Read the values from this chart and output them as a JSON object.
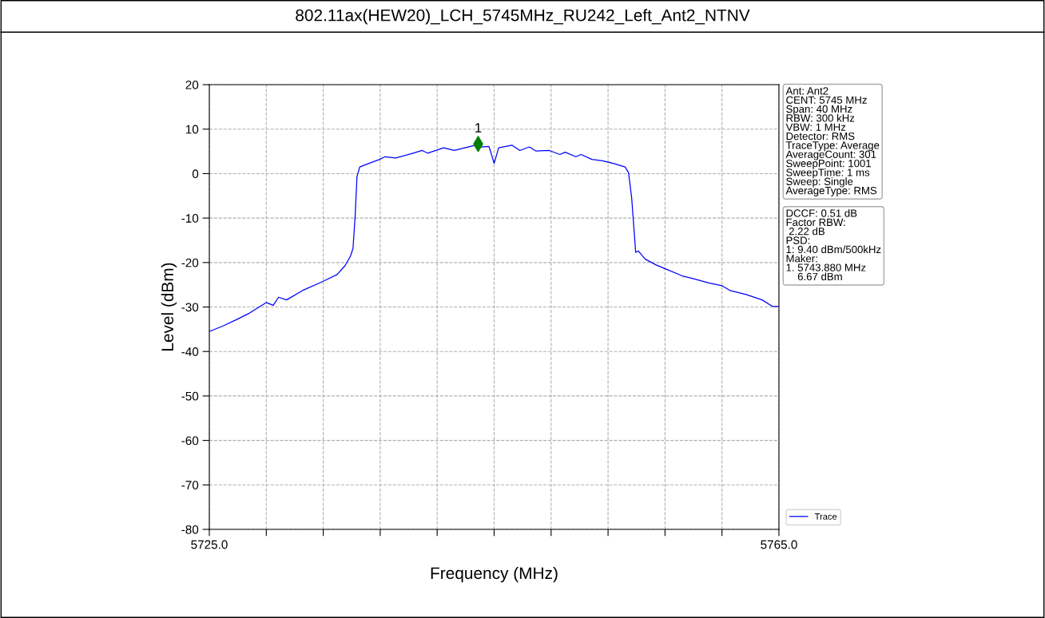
{
  "chart_data": {
    "type": "line",
    "title": "802.11ax(HEW20)_LCH_5745MHz_RU242_Left_Ant2_NTNV",
    "xlabel": "Frequency (MHz)",
    "ylabel": "Level (dBm)",
    "xlim": [
      5725,
      5765
    ],
    "xticks": [
      {
        "value": 5725,
        "label": "5725.0"
      },
      {
        "value": 5729,
        "label": null
      },
      {
        "value": 5733,
        "label": null
      },
      {
        "value": 5737,
        "label": null
      },
      {
        "value": 5741,
        "label": null
      },
      {
        "value": 5745,
        "label": null
      },
      {
        "value": 5749,
        "label": null
      },
      {
        "value": 5753,
        "label": null
      },
      {
        "value": 5757,
        "label": null
      },
      {
        "value": 5761,
        "label": null
      },
      {
        "value": 5765,
        "label": "5765.0"
      }
    ],
    "ylim": [
      -80,
      20
    ],
    "yticks": [
      -80,
      -70,
      -60,
      -50,
      -40,
      -30,
      -20,
      -10,
      0,
      10,
      20
    ],
    "grid": true,
    "legend": "bottom right",
    "series": [
      {
        "name": "Trace",
        "color": "#0000ff",
        "marker": "none",
        "line_style": "solid",
        "x": [
          5725.0,
          5725.93,
          5726.87,
          5727.8,
          5729.0,
          5729.49,
          5729.86,
          5730.42,
          5731.54,
          5733.0,
          5733.97,
          5734.53,
          5734.91,
          5735.09,
          5735.24,
          5735.37,
          5735.56,
          5736.21,
          5736.96,
          5737.34,
          5738.08,
          5739.21,
          5739.95,
          5740.33,
          5741.45,
          5742.2,
          5743.69,
          5744.07,
          5744.63,
          5744.7,
          5745.0,
          5745.32,
          5746.25,
          5746.81,
          5747.47,
          5747.93,
          5748.87,
          5749.62,
          5749.99,
          5750.74,
          5751.11,
          5751.86,
          5752.61,
          5753.36,
          5754.2,
          5754.44,
          5754.66,
          5754.94,
          5755.13,
          5755.6,
          5756.35,
          5757.09,
          5758.21,
          5758.96,
          5760.08,
          5761.0,
          5761.58,
          5762.7,
          5763.82,
          5764.57,
          5765.0
        ],
        "values": [
          -35.5,
          -34.3,
          -32.9,
          -31.4,
          -29.0,
          -29.6,
          -27.8,
          -28.4,
          -26.3,
          -24.2,
          -22.7,
          -20.7,
          -18.6,
          -16.8,
          -9.6,
          -0.7,
          1.5,
          2.3,
          3.2,
          3.8,
          3.5,
          4.5,
          5.2,
          4.6,
          5.8,
          5.2,
          6.4,
          6.0,
          6.1,
          5.5,
          2.3,
          5.8,
          6.4,
          5.2,
          6.0,
          5.1,
          5.2,
          4.3,
          4.8,
          3.8,
          4.3,
          3.2,
          2.9,
          2.3,
          1.5,
          0.2,
          -5.5,
          -17.7,
          -17.4,
          -19.2,
          -20.5,
          -21.5,
          -23.0,
          -23.6,
          -24.6,
          -25.2,
          -26.3,
          -27.2,
          -28.4,
          -29.9,
          -29.9
        ]
      },
      {
        "color": "#008000",
        "type": "scatter",
        "marker": "diamond",
        "x": [
          5743.88
        ],
        "values": [
          6.67
        ]
      }
    ],
    "annotations": [
      {
        "text": "1",
        "x": 5743.88,
        "y": 6.67
      },
      "Ant: Ant2\nCENT: 5745 MHz\nSpan: 40 MHz\nRBW: 300 kHz\nVBW: 1 MHz\nDetector: RMS\nTraceType: Average\nAverageCount: 301\nSweepPoint: 1001\nSweepTime: 1 ms\nSweep: Single\nAverageType: RMS",
      "DCCF: 0.51 dB\nFactor RBW:\n 2.22 dB\nPSD:\n1: 9.40 dBm/500kHz\nMaker:\n1. 5743.880 MHz\n    6.67 dBm"
    ]
  }
}
